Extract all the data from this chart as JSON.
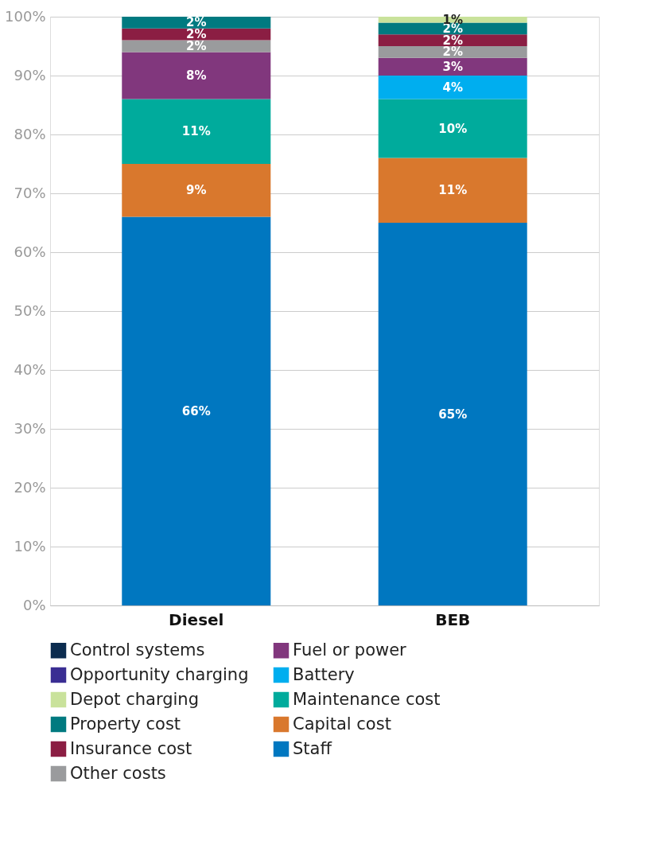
{
  "chart_data": {
    "type": "bar",
    "stacked": true,
    "categories": [
      "Diesel",
      "BEB"
    ],
    "ylim": [
      0,
      100
    ],
    "yticks": [
      {
        "value": 0,
        "label": "0%"
      },
      {
        "value": 10,
        "label": "10%"
      },
      {
        "value": 20,
        "label": "20%"
      },
      {
        "value": 30,
        "label": "30%"
      },
      {
        "value": 40,
        "label": "40%"
      },
      {
        "value": 50,
        "label": "50%"
      },
      {
        "value": 60,
        "label": "60%"
      },
      {
        "value": 70,
        "label": "70%"
      },
      {
        "value": 80,
        "label": "80%"
      },
      {
        "value": 90,
        "label": "90%"
      },
      {
        "value": 100,
        "label": "100%"
      }
    ],
    "grid": "y",
    "legend": "bottom",
    "series": [
      {
        "name": "Staff",
        "color": "#0077c0",
        "values": [
          66,
          65
        ],
        "value_labels": [
          "66%",
          "65%"
        ]
      },
      {
        "name": "Capital cost",
        "color": "#d9782d",
        "values": [
          9,
          11
        ],
        "value_labels": [
          "9%",
          "11%"
        ]
      },
      {
        "name": "Maintenance cost",
        "color": "#00ab9c",
        "values": [
          11,
          10
        ],
        "value_labels": [
          "11%",
          "10%"
        ]
      },
      {
        "name": "Battery",
        "color": "#00aeef",
        "values": [
          0,
          4
        ],
        "value_labels": [
          null,
          "4%"
        ]
      },
      {
        "name": "Fuel or power",
        "color": "#81377d",
        "values": [
          8,
          3
        ],
        "value_labels": [
          "8%",
          "3%"
        ]
      },
      {
        "name": "Other costs",
        "color": "#9a9b9d",
        "values": [
          2,
          2
        ],
        "value_labels": [
          "2%",
          "2%"
        ]
      },
      {
        "name": "Insurance cost",
        "color": "#8b1e43",
        "values": [
          2,
          2
        ],
        "value_labels": [
          "2%",
          "2%"
        ]
      },
      {
        "name": "Property cost",
        "color": "#007a80",
        "values": [
          2,
          2
        ],
        "value_labels": [
          "2%",
          "2%"
        ]
      },
      {
        "name": "Depot charging",
        "color": "#c9e29b",
        "values": [
          0,
          1
        ],
        "value_labels": [
          null,
          "1%"
        ]
      },
      {
        "name": "Opportunity charging",
        "color": "#3a2e93",
        "values": [
          0,
          0
        ],
        "value_labels": [
          null,
          null
        ]
      },
      {
        "name": "Control systems",
        "color": "#0c2c4f",
        "values": [
          0,
          0
        ],
        "value_labels": [
          null,
          null
        ]
      }
    ]
  }
}
